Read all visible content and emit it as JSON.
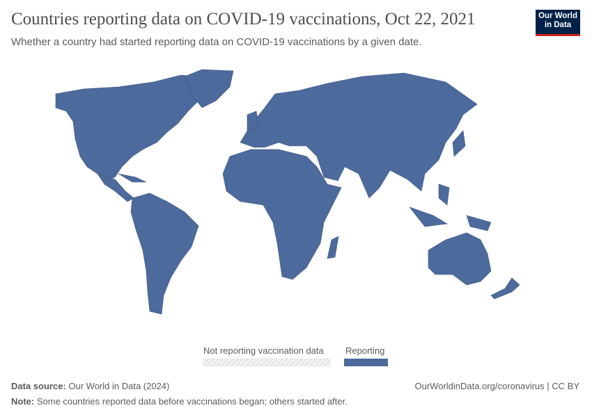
{
  "header": {
    "title": "Countries reporting data on COVID-19 vaccinations, Oct 22, 2021",
    "subtitle": "Whether a country had started reporting data on COVID-19 vaccinations by a given date.",
    "logo_text": "Our World in Data"
  },
  "map": {
    "fill_color": "#4c6a9c",
    "stroke_color": "#3e5680"
  },
  "legend": {
    "items": [
      {
        "label": "Not reporting vaccination data",
        "style": "hatched",
        "color": "#e0e0e0"
      },
      {
        "label": "Reporting",
        "style": "solid",
        "color": "#4c6a9c"
      }
    ]
  },
  "footer": {
    "source_label": "Data source:",
    "source_value": "Our World in Data (2024)",
    "url": "OurWorldinData.org/coronavirus | CC BY",
    "note_label": "Note:",
    "note_value": "Some countries reported data before vaccinations began; others started after."
  }
}
